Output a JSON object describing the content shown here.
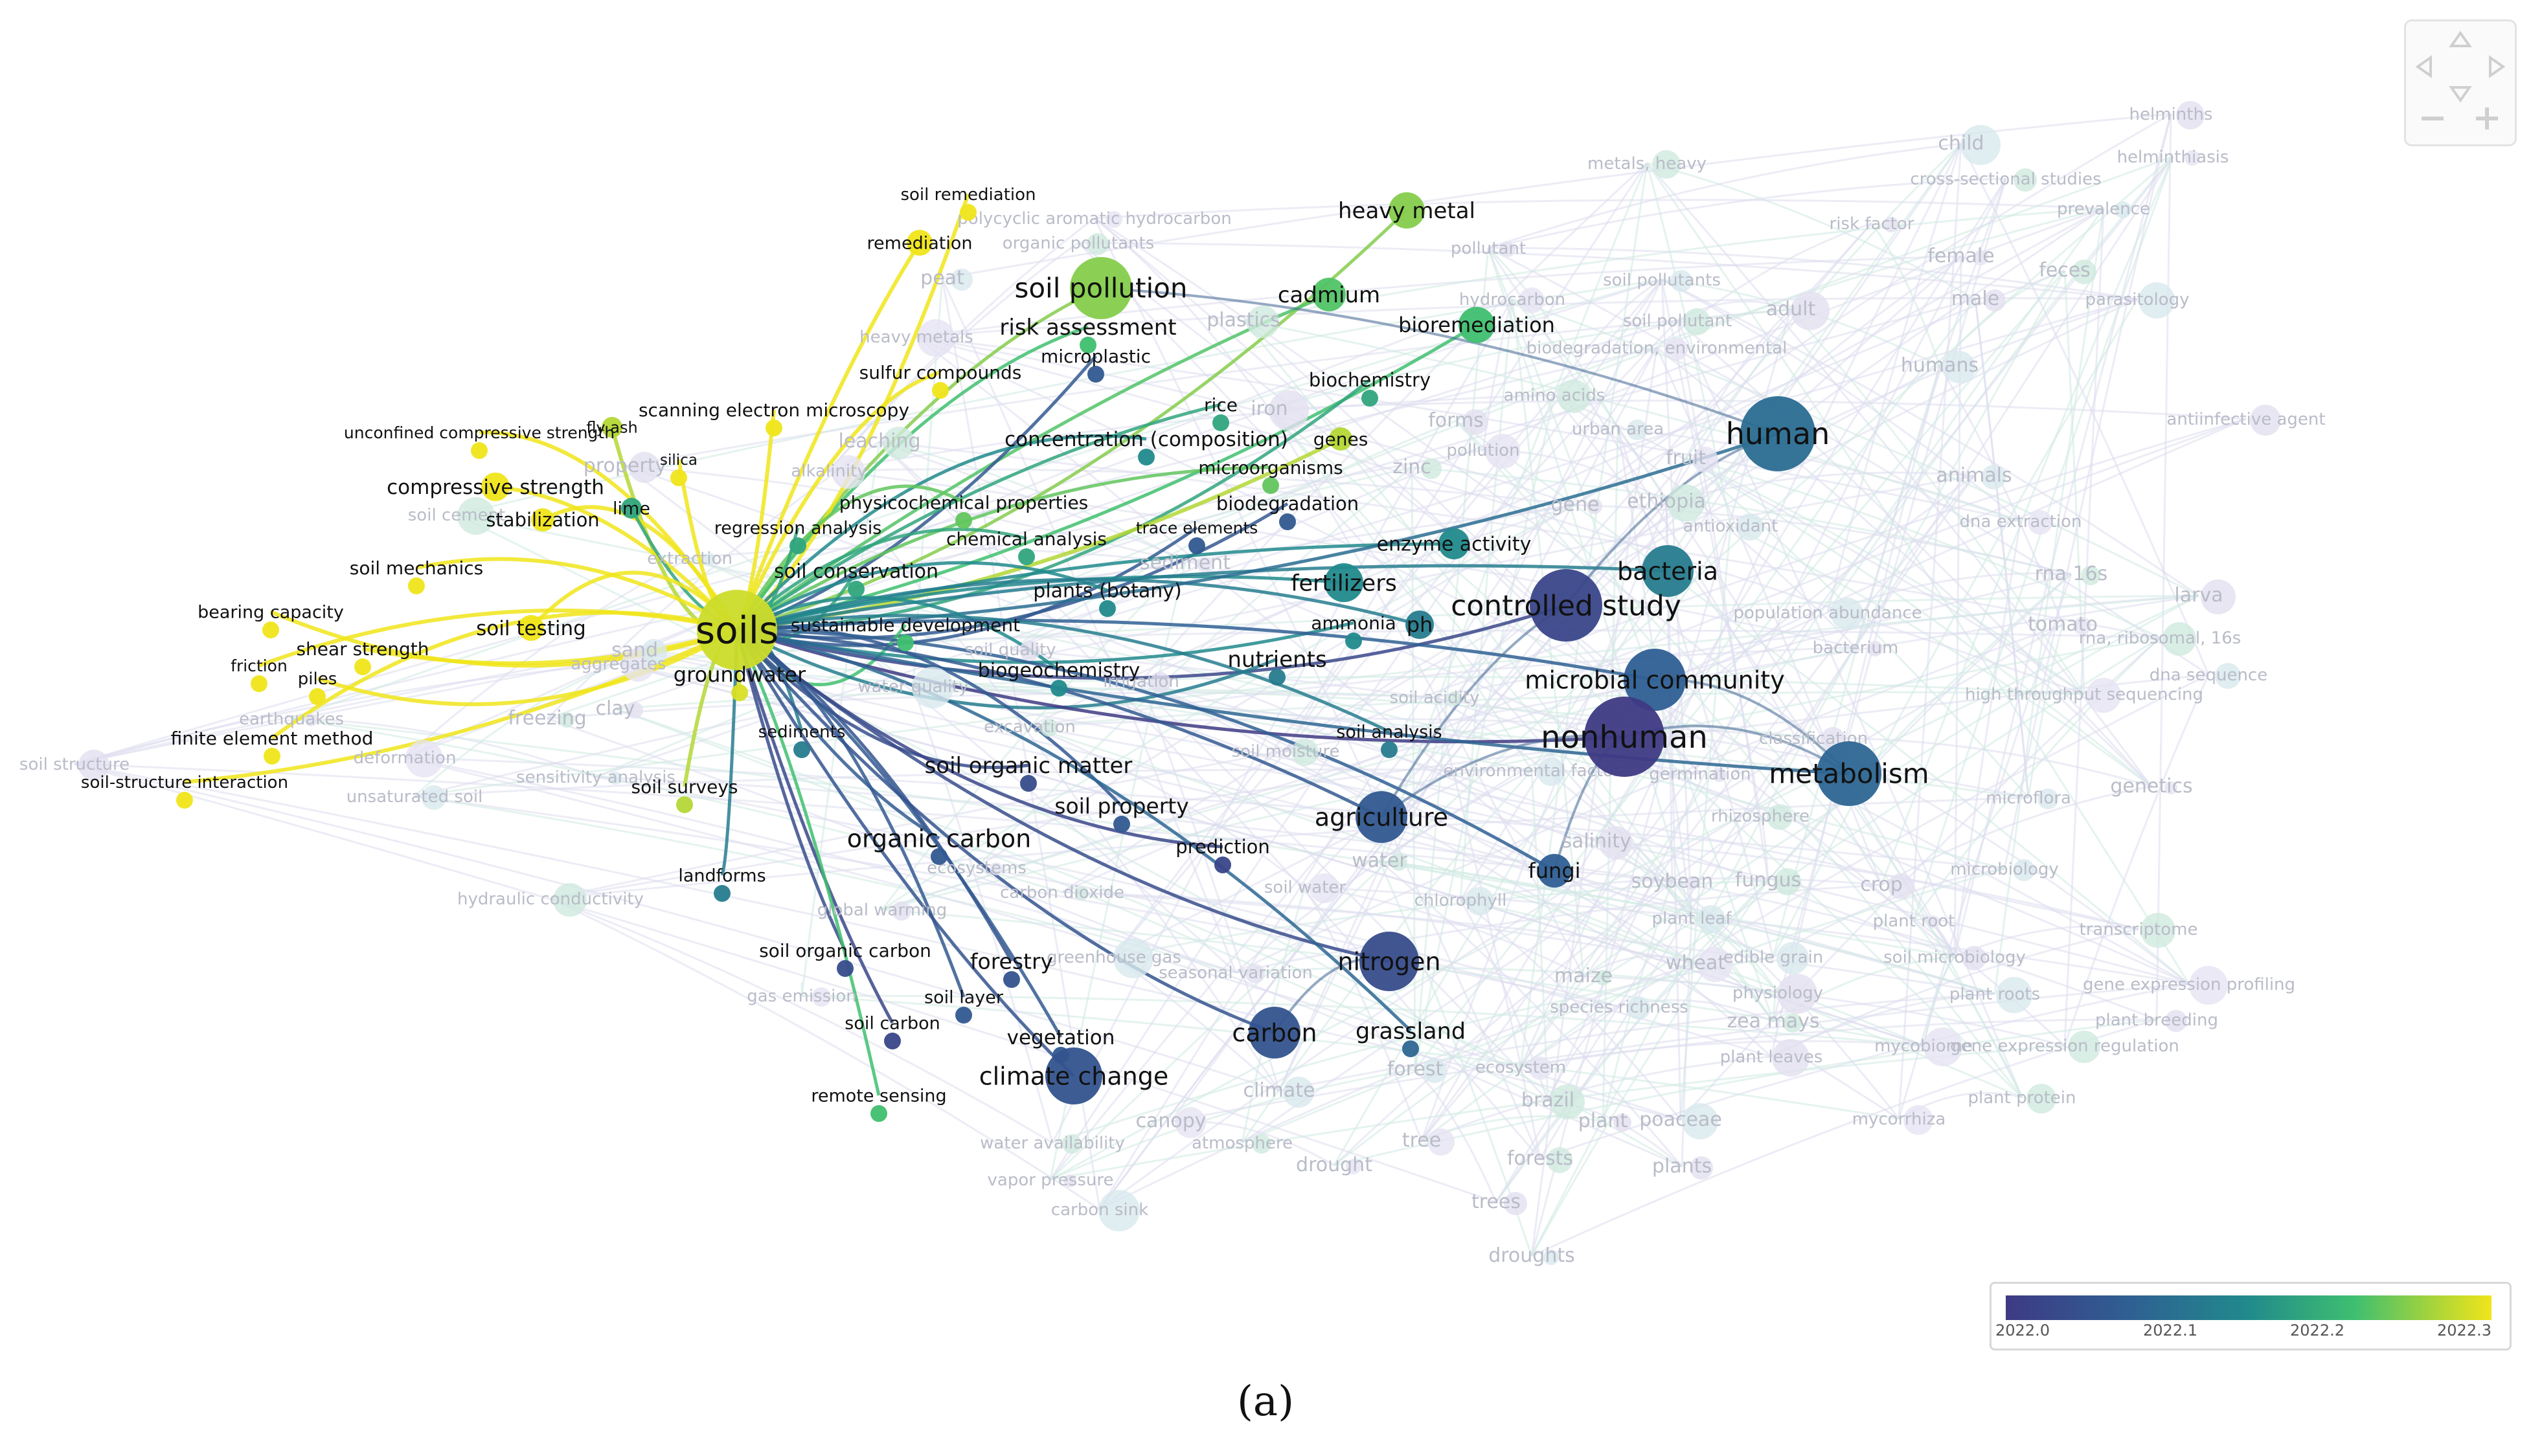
{
  "caption": "(a)",
  "legend": {
    "ticks": [
      "2022.0",
      "2022.1",
      "2022.2",
      "2022.3"
    ],
    "colors": [
      "#3e3a84",
      "#2f5f93",
      "#218a8c",
      "#3fbf6f",
      "#a8d43a",
      "#f0e51a"
    ]
  },
  "nav_widget": {
    "icons": [
      "pan-up-icon",
      "pan-left-icon",
      "pan-right-icon",
      "pan-down-icon",
      "zoom-out-icon",
      "zoom-in-icon"
    ]
  },
  "hub": "soils",
  "clusters": {
    "highlighted": [
      {
        "label": "soils",
        "year": 2022.27
      },
      {
        "label": "groundwater",
        "year": 2022.28
      },
      {
        "label": "soil pollution",
        "year": 2022.22
      },
      {
        "label": "heavy metal",
        "year": 2022.22
      },
      {
        "label": "cadmium",
        "year": 2022.19
      },
      {
        "label": "bioremediation",
        "year": 2022.18
      },
      {
        "label": "risk assessment",
        "year": 2022.18
      },
      {
        "label": "soil remediation",
        "year": 2022.3
      },
      {
        "label": "remediation",
        "year": 2022.3
      },
      {
        "label": "microplastic",
        "year": 2022.05
      },
      {
        "label": "sulfur compounds",
        "year": 2022.3
      },
      {
        "label": "biochemistry",
        "year": 2022.15
      },
      {
        "label": "rice",
        "year": 2022.15
      },
      {
        "label": "scanning electron microscopy",
        "year": 2022.3
      },
      {
        "label": "unconfined compressive strength",
        "year": 2022.3
      },
      {
        "label": "fly ash",
        "year": 2022.25
      },
      {
        "label": "compressive strength",
        "year": 2022.3
      },
      {
        "label": "silica",
        "year": 2022.3
      },
      {
        "label": "stabilization",
        "year": 2022.3
      },
      {
        "label": "lime",
        "year": 2022.15
      },
      {
        "label": "soil mechanics",
        "year": 2022.3
      },
      {
        "label": "bearing capacity",
        "year": 2022.3
      },
      {
        "label": "soil testing",
        "year": 2022.3
      },
      {
        "label": "shear strength",
        "year": 2022.3
      },
      {
        "label": "friction",
        "year": 2022.3
      },
      {
        "label": "piles",
        "year": 2022.3
      },
      {
        "label": "finite element method",
        "year": 2022.3
      },
      {
        "label": "soil-structure interaction",
        "year": 2022.3
      },
      {
        "label": "soil surveys",
        "year": 2022.25
      },
      {
        "label": "landforms",
        "year": 2022.1
      },
      {
        "label": "concentration (composition)",
        "year": 2022.12
      },
      {
        "label": "genes",
        "year": 2022.25
      },
      {
        "label": "microorganisms",
        "year": 2022.2
      },
      {
        "label": "biodegradation",
        "year": 2022.05
      },
      {
        "label": "physicochemical properties",
        "year": 2022.2
      },
      {
        "label": "regression analysis",
        "year": 2022.15
      },
      {
        "label": "chemical analysis",
        "year": 2022.15
      },
      {
        "label": "trace elements",
        "year": 2022.05
      },
      {
        "label": "enzyme activity",
        "year": 2022.12
      },
      {
        "label": "soil conservation",
        "year": 2022.15
      },
      {
        "label": "plants (botany)",
        "year": 2022.12
      },
      {
        "label": "sustainable development",
        "year": 2022.18
      },
      {
        "label": "fertilizers",
        "year": 2022.12
      },
      {
        "label": "ammonia",
        "year": 2022.12
      },
      {
        "label": "ph",
        "year": 2022.1
      },
      {
        "label": "controlled study",
        "year": 2022.02
      },
      {
        "label": "bacteria",
        "year": 2022.1
      },
      {
        "label": "human",
        "year": 2022.08
      },
      {
        "label": "biogeochemistry",
        "year": 2022.12
      },
      {
        "label": "nutrients",
        "year": 2022.1
      },
      {
        "label": "microbial community",
        "year": 2022.06
      },
      {
        "label": "nonhuman",
        "year": 2022.0
      },
      {
        "label": "soil analysis",
        "year": 2022.1
      },
      {
        "label": "metabolism",
        "year": 2022.07
      },
      {
        "label": "sediments",
        "year": 2022.1
      },
      {
        "label": "soil organic matter",
        "year": 2022.03
      },
      {
        "label": "soil property",
        "year": 2022.05
      },
      {
        "label": "organic carbon",
        "year": 2022.05
      },
      {
        "label": "agriculture",
        "year": 2022.05
      },
      {
        "label": "prediction",
        "year": 2022.02
      },
      {
        "label": "fungi",
        "year": 2022.06
      },
      {
        "label": "soil organic carbon",
        "year": 2022.03
      },
      {
        "label": "forestry",
        "year": 2022.04
      },
      {
        "label": "nitrogen",
        "year": 2022.03
      },
      {
        "label": "soil layer",
        "year": 2022.05
      },
      {
        "label": "soil carbon",
        "year": 2022.02
      },
      {
        "label": "vegetation",
        "year": 2022.05
      },
      {
        "label": "carbon",
        "year": 2022.04
      },
      {
        "label": "grassland",
        "year": 2022.07
      },
      {
        "label": "climate change",
        "year": 2022.04
      },
      {
        "label": "remote sensing",
        "year": 2022.18
      }
    ],
    "faded": [
      "metals, heavy",
      "helminths",
      "child",
      "helminthiasis",
      "cross-sectional studies",
      "risk factor",
      "prevalence",
      "polycyclic aromatic hydrocarbon",
      "organic pollutants",
      "pollutant",
      "soil pollutants",
      "female",
      "feces",
      "male",
      "parasitology",
      "hydrocarbon",
      "soil pollutant",
      "adult",
      "humans",
      "biodegradation, environmental",
      "amino acids",
      "forms",
      "urban area",
      "pollution",
      "zinc",
      "antiinfective agent",
      "animals",
      "fruit",
      "ethiopia",
      "gene",
      "antioxidant",
      "dna extraction",
      "rna 16s",
      "larva",
      "population abundance",
      "tomato",
      "rna, ribosomal, 16s",
      "bacterium",
      "dna sequence",
      "high throughput sequencing",
      "soil acidity",
      "classification",
      "microflora",
      "genetics",
      "rhizosphere",
      "salinity",
      "microbiology",
      "soybean",
      "fungus",
      "crop",
      "plant leaf",
      "plant root",
      "transcriptome",
      "soil microbiology",
      "edible grain",
      "wheat",
      "maize",
      "physiology",
      "plant roots",
      "gene expression profiling",
      "zea mays",
      "plant breeding",
      "species richness",
      "mycobiome",
      "gene expression regulation",
      "plant leaves",
      "forest",
      "ecosystem",
      "brazil",
      "plant",
      "poaceae",
      "mycorrhiza",
      "plant protein",
      "plants",
      "climate",
      "drought",
      "forests",
      "trees",
      "droughts",
      "tree",
      "water availability",
      "vapor pressure",
      "carbon sink",
      "canopy",
      "atmosphere",
      "seasonal variation",
      "greenhouse gas",
      "gas emission",
      "hydraulic conductivity",
      "soil structure",
      "unsaturated soil",
      "deformation",
      "freezing",
      "clay",
      "sensitivity analysis",
      "aggregates",
      "soil cement",
      "property",
      "extraction",
      "earthquakes",
      "excavation",
      "soil quality",
      "water quality",
      "ecosystems",
      "carbon dioxide",
      "global warming",
      "chlorophyll",
      "soil water",
      "water",
      "irrigation",
      "sand",
      "sediment",
      "soil moisture",
      "germination",
      "environmental factor",
      "alkalinity",
      "leaching",
      "iron",
      "peat",
      "heavy metals",
      "plastics"
    ]
  }
}
